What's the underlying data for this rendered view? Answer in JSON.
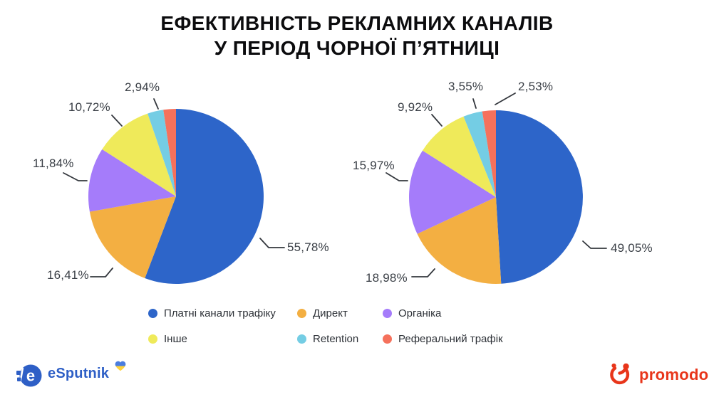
{
  "title": {
    "line1": "ЕФЕКТИВНІСТЬ РЕКЛАМНИХ КАНАЛІВ",
    "line2": "У ПЕРІОД ЧОРНОЇ П’ЯТНИЦІ"
  },
  "chart_data": [
    {
      "type": "pie",
      "name": "black-friday-period-left",
      "start_angle_deg": 0,
      "direction": "clockwise",
      "legend_position": "bottom",
      "slices": [
        {
          "label": "Платні канали трафіку",
          "value": 55.78,
          "display": "55,78%",
          "color": "#2d65c9"
        },
        {
          "label": "Директ",
          "value": 16.41,
          "display": "16,41%",
          "color": "#f3af42"
        },
        {
          "label": "Органіка",
          "value": 11.84,
          "display": "11,84%",
          "color": "#a57cfa"
        },
        {
          "label": "Інше",
          "value": 10.72,
          "display": "10,72%",
          "color": "#efea5a"
        },
        {
          "label": "Retention",
          "value": 2.94,
          "display": "2,94%",
          "color": "#74cde4"
        },
        {
          "label": "Реферальний трафік",
          "value": 2.31,
          "display": "",
          "color": "#f5715c"
        }
      ]
    },
    {
      "type": "pie",
      "name": "black-friday-period-right",
      "start_angle_deg": 0,
      "direction": "clockwise",
      "legend_position": "bottom",
      "slices": [
        {
          "label": "Платні канали трафіку",
          "value": 49.05,
          "display": "49,05%",
          "color": "#2d65c9"
        },
        {
          "label": "Директ",
          "value": 18.98,
          "display": "18,98%",
          "color": "#f3af42"
        },
        {
          "label": "Органіка",
          "value": 15.97,
          "display": "15,97%",
          "color": "#a57cfa"
        },
        {
          "label": "Інше",
          "value": 9.92,
          "display": "9,92%",
          "color": "#efea5a"
        },
        {
          "label": "Retention",
          "value": 3.55,
          "display": "3,55%",
          "color": "#74cde4"
        },
        {
          "label": "Реферальний трафік",
          "value": 2.53,
          "display": "2,53%",
          "color": "#f5715c"
        }
      ]
    }
  ],
  "legend": {
    "items": [
      {
        "label": "Платні канали трафіку",
        "color": "#2d65c9"
      },
      {
        "label": "Директ",
        "color": "#f3af42"
      },
      {
        "label": "Органіка",
        "color": "#a57cfa"
      },
      {
        "label": "Інше",
        "color": "#efea5a"
      },
      {
        "label": "Retention",
        "color": "#74cde4"
      },
      {
        "label": "Реферальний трафік",
        "color": "#f5715c"
      }
    ]
  },
  "footer": {
    "esputnik_text": "eSputnik",
    "promodo_text": "promodo"
  }
}
